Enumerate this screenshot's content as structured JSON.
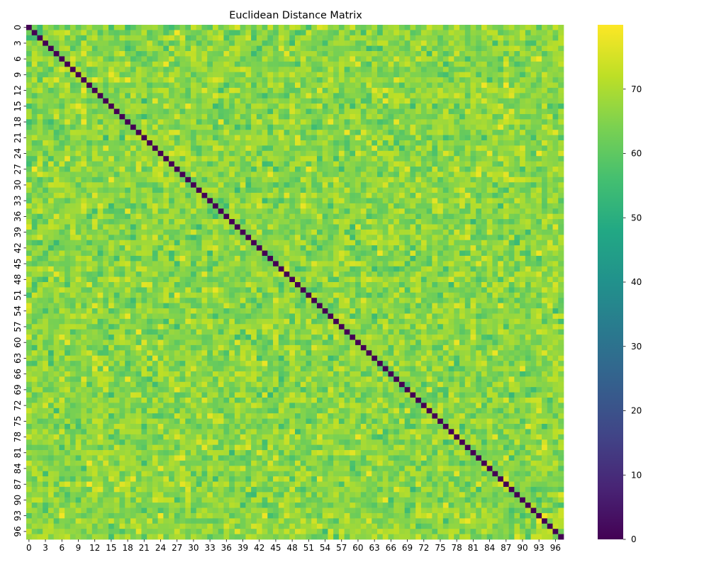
{
  "chart_data": {
    "type": "heatmap",
    "title": "Euclidean Distance Matrix",
    "xlabel": "",
    "ylabel": "",
    "n": 98,
    "x_tick_labels": [
      "0",
      "3",
      "6",
      "9",
      "12",
      "15",
      "18",
      "21",
      "24",
      "27",
      "30",
      "33",
      "36",
      "39",
      "42",
      "45",
      "48",
      "51",
      "54",
      "57",
      "60",
      "63",
      "66",
      "69",
      "72",
      "75",
      "78",
      "81",
      "84",
      "87",
      "90",
      "93",
      "96"
    ],
    "y_tick_labels": [
      "0",
      "3",
      "6",
      "9",
      "12",
      "15",
      "18",
      "21",
      "24",
      "27",
      "30",
      "33",
      "36",
      "39",
      "42",
      "45",
      "48",
      "51",
      "54",
      "57",
      "60",
      "63",
      "66",
      "69",
      "72",
      "75",
      "78",
      "81",
      "84",
      "87",
      "90",
      "93",
      "96"
    ],
    "diagonal_value": 0,
    "off_diagonal_range": [
      52,
      80
    ],
    "typical_off_diagonal": 64,
    "colormap": "viridis",
    "colorbar": {
      "min": 0,
      "max": 80,
      "tick_values": [
        0,
        10,
        20,
        30,
        40,
        50,
        60,
        70
      ],
      "tick_labels": [
        "0",
        "10",
        "20",
        "30",
        "40",
        "50",
        "60",
        "70"
      ]
    },
    "colors": {
      "viridis_low": "#440154",
      "viridis_mid": "#21918c",
      "viridis_high": "#fde725"
    }
  }
}
